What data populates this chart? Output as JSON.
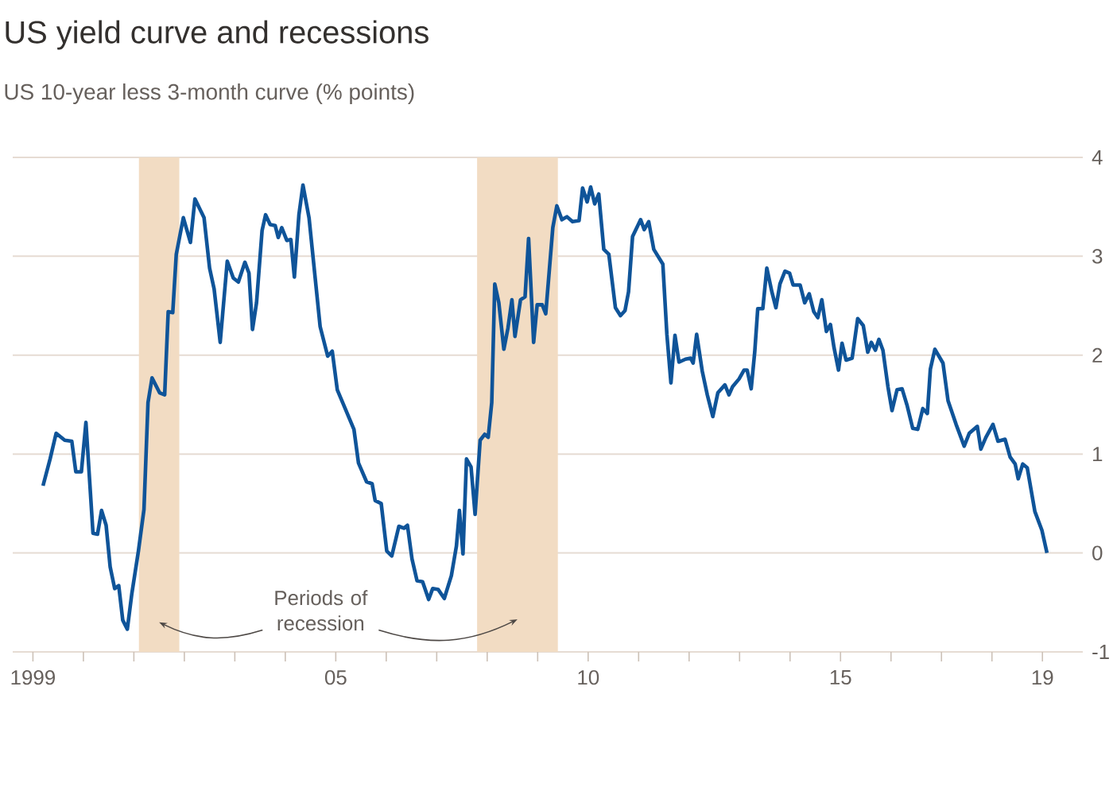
{
  "chart_data": {
    "type": "line",
    "title": "US yield curve and recessions",
    "subtitle": "US 10-year less 3-month curve (% points)",
    "annotations": [
      "Periods of recession"
    ],
    "xlim": [
      1998.6,
      2019.8
    ],
    "ylim": [
      -1,
      4
    ],
    "yticks": [
      -1,
      0,
      1,
      2,
      3,
      4
    ],
    "grid": "y",
    "xticks": [
      1999,
      {
        "value": 2005,
        "label": "05"
      },
      {
        "value": 2010,
        "label": "10"
      },
      {
        "value": 2015,
        "label": "15"
      },
      {
        "value": 2019,
        "label": "19"
      },
      {
        "value": 2000,
        "label": null
      },
      {
        "value": 2001,
        "label": null
      },
      {
        "value": 2002,
        "label": null
      },
      {
        "value": 2003,
        "label": null
      },
      {
        "value": 2004,
        "label": null
      },
      {
        "value": 2005,
        "label": null
      },
      {
        "value": 2006,
        "label": null
      },
      {
        "value": 2007,
        "label": null
      },
      {
        "value": 2008,
        "label": null
      },
      {
        "value": 2009,
        "label": null
      },
      {
        "value": 2010,
        "label": null
      },
      {
        "value": 2011,
        "label": null
      },
      {
        "value": 2012,
        "label": null
      },
      {
        "value": 2013,
        "label": null
      },
      {
        "value": 2014,
        "label": null
      },
      {
        "value": 2015,
        "label": null
      },
      {
        "value": 2016,
        "label": null
      },
      {
        "value": 2017,
        "label": null
      },
      {
        "value": 2018,
        "label": null
      },
      {
        "value": 2019,
        "label": null
      }
    ],
    "bands": [
      {
        "axis": "x",
        "from": 2001.1,
        "to": 2001.9,
        "color": "#f2dcc3"
      },
      {
        "axis": "x",
        "from": 2007.8,
        "to": 2009.4,
        "color": "#f2dcc3"
      }
    ],
    "series": [
      {
        "color": "#0f5499",
        "x": [
          1999.2,
          1999.34,
          1999.46,
          1999.63,
          1999.77,
          1999.85,
          1999.96,
          2000.05,
          2000.19,
          2000.28,
          2000.36,
          2000.45,
          2000.53,
          2000.62,
          2000.7,
          2000.78,
          2000.87,
          2000.96,
          2001.09,
          2001.2,
          2001.28,
          2001.36,
          2001.51,
          2001.61,
          2001.68,
          2001.77,
          2001.84,
          2001.98,
          2002.12,
          2002.21,
          2002.39,
          2002.5,
          2002.59,
          2002.71,
          2002.85,
          2002.97,
          2003.07,
          2003.2,
          2003.28,
          2003.35,
          2003.43,
          2003.54,
          2003.61,
          2003.7,
          2003.8,
          2003.86,
          2003.93,
          2004.03,
          2004.11,
          2004.18,
          2004.27,
          2004.35,
          2004.47,
          2004.69,
          2004.84,
          2004.93,
          2005.03,
          2005.36,
          2005.45,
          2005.61,
          2005.72,
          2005.78,
          2005.9,
          2006.01,
          2006.11,
          2006.25,
          2006.35,
          2006.42,
          2006.51,
          2006.61,
          2006.72,
          2006.84,
          2006.92,
          2007.03,
          2007.15,
          2007.29,
          2007.39,
          2007.45,
          2007.52,
          2007.59,
          2007.68,
          2007.76,
          2007.86,
          2007.95,
          2008.02,
          2008.09,
          2008.15,
          2008.23,
          2008.33,
          2008.41,
          2008.49,
          2008.55,
          2008.66,
          2008.75,
          2008.82,
          2008.92,
          2008.99,
          2009.09,
          2009.16,
          2009.3,
          2009.38,
          2009.48,
          2009.58,
          2009.69,
          2009.82,
          2009.89,
          2009.98,
          2010.05,
          2010.13,
          2010.21,
          2010.31,
          2010.41,
          2010.54,
          2010.64,
          2010.73,
          2010.8,
          2010.88,
          2011.04,
          2011.11,
          2011.2,
          2011.3,
          2011.48,
          2011.56,
          2011.64,
          2011.72,
          2011.8,
          2011.93,
          2012.03,
          2012.08,
          2012.15,
          2012.26,
          2012.36,
          2012.47,
          2012.57,
          2012.71,
          2012.79,
          2012.86,
          2012.99,
          2013.09,
          2013.15,
          2013.23,
          2013.3,
          2013.36,
          2013.46,
          2013.54,
          2013.64,
          2013.72,
          2013.8,
          2013.9,
          2013.99,
          2014.06,
          2014.2,
          2014.29,
          2014.38,
          2014.47,
          2014.55,
          2014.63,
          2014.72,
          2014.8,
          2014.87,
          2014.96,
          2015.03,
          2015.11,
          2015.23,
          2015.34,
          2015.45,
          2015.54,
          2015.61,
          2015.69,
          2015.76,
          2015.84,
          2015.94,
          2016.02,
          2016.12,
          2016.22,
          2016.32,
          2016.43,
          2016.53,
          2016.63,
          2016.72,
          2016.78,
          2016.87,
          2017.03,
          2017.13,
          2017.29,
          2017.45,
          2017.55,
          2017.71,
          2017.78,
          2017.88,
          2018.02,
          2018.12,
          2018.26,
          2018.36,
          2018.46,
          2018.52,
          2018.61,
          2018.7,
          2018.85,
          2018.99,
          2019.09
        ],
        "values": [
          0.68,
          0.95,
          1.21,
          1.14,
          1.13,
          0.82,
          0.82,
          1.32,
          0.2,
          0.19,
          0.43,
          0.28,
          -0.14,
          -0.36,
          -0.33,
          -0.68,
          -0.77,
          -0.41,
          0.02,
          0.44,
          1.52,
          1.77,
          1.62,
          1.6,
          2.44,
          2.43,
          3.02,
          3.39,
          3.14,
          3.58,
          3.39,
          2.88,
          2.67,
          2.13,
          2.95,
          2.78,
          2.74,
          2.94,
          2.83,
          2.26,
          2.53,
          3.26,
          3.42,
          3.32,
          3.31,
          3.19,
          3.29,
          3.16,
          3.17,
          2.79,
          3.42,
          3.72,
          3.39,
          2.29,
          1.99,
          2.04,
          1.65,
          1.25,
          0.91,
          0.72,
          0.7,
          0.53,
          0.5,
          0.02,
          -0.03,
          0.27,
          0.25,
          0.28,
          -0.06,
          -0.28,
          -0.29,
          -0.47,
          -0.36,
          -0.37,
          -0.46,
          -0.23,
          0.07,
          0.43,
          -0.01,
          0.95,
          0.87,
          0.39,
          1.14,
          1.2,
          1.17,
          1.52,
          2.72,
          2.53,
          2.06,
          2.27,
          2.56,
          2.19,
          2.56,
          2.59,
          3.18,
          2.13,
          2.51,
          2.51,
          2.42,
          3.29,
          3.51,
          3.37,
          3.4,
          3.35,
          3.36,
          3.69,
          3.55,
          3.7,
          3.53,
          3.63,
          3.07,
          3.02,
          2.48,
          2.4,
          2.45,
          2.64,
          3.2,
          3.37,
          3.27,
          3.35,
          3.07,
          2.92,
          2.21,
          1.72,
          2.2,
          1.93,
          1.96,
          1.97,
          1.92,
          2.21,
          1.84,
          1.6,
          1.38,
          1.62,
          1.7,
          1.6,
          1.68,
          1.76,
          1.85,
          1.85,
          1.66,
          2.03,
          2.47,
          2.47,
          2.88,
          2.64,
          2.48,
          2.72,
          2.85,
          2.83,
          2.71,
          2.71,
          2.53,
          2.62,
          2.44,
          2.38,
          2.56,
          2.24,
          2.31,
          2.08,
          1.85,
          2.12,
          1.95,
          1.97,
          2.37,
          2.3,
          2.03,
          2.13,
          2.05,
          2.16,
          2.05,
          1.68,
          1.44,
          1.65,
          1.66,
          1.49,
          1.26,
          1.25,
          1.46,
          1.41,
          1.86,
          2.06,
          1.92,
          1.54,
          1.3,
          1.08,
          1.21,
          1.28,
          1.05,
          1.17,
          1.3,
          1.13,
          1.15,
          0.97,
          0.9,
          0.75,
          0.9,
          0.86,
          0.42,
          0.23,
          0.0
        ]
      }
    ]
  }
}
